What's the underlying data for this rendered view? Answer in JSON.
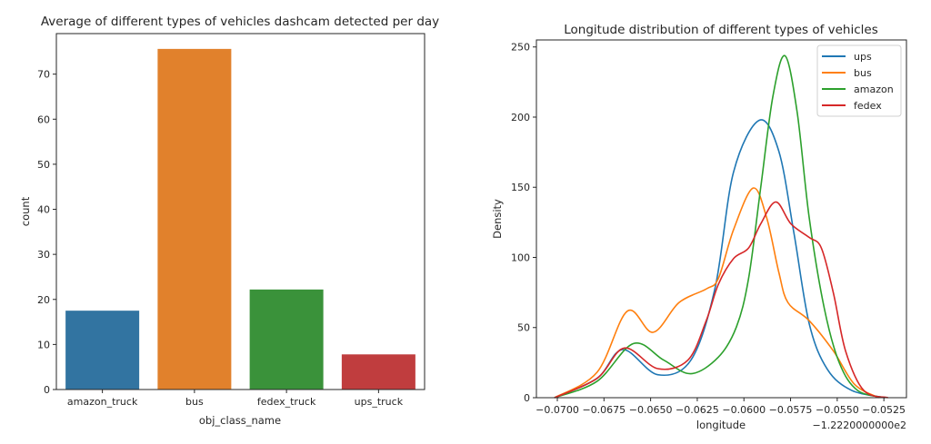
{
  "chart_data": [
    {
      "type": "bar",
      "title": "Average of different types of vehicles dashcam detected per day",
      "xlabel": "obj_class_name",
      "ylabel": "count",
      "categories": [
        "amazon_truck",
        "bus",
        "fedex_truck",
        "ups_truck"
      ],
      "values": [
        17.5,
        75.6,
        22.2,
        7.8
      ],
      "colors": [
        "#3274a1",
        "#e1812c",
        "#3a923a",
        "#c03d3e"
      ],
      "ylim": [
        0,
        79
      ],
      "yticks": [
        0,
        10,
        20,
        30,
        40,
        50,
        60,
        70
      ],
      "grid": false
    },
    {
      "type": "line",
      "title": "Longitude distribution of different types of vehicles",
      "xlabel": "longitude",
      "ylabel": "Density",
      "x_offset_label": "−1.2220000000e2",
      "xlim": [
        -0.07112,
        -0.05129
      ],
      "ylim": [
        0,
        255
      ],
      "xticks": [
        -0.07,
        -0.0675,
        -0.065,
        -0.0625,
        -0.06,
        -0.0575,
        -0.055,
        -0.0525
      ],
      "xtick_labels": [
        "−0.0700",
        "−0.0675",
        "−0.0650",
        "−0.0625",
        "−0.0600",
        "−0.0575",
        "−0.0550",
        "−0.0525"
      ],
      "yticks": [
        0,
        50,
        100,
        150,
        200,
        250
      ],
      "legend_position": "top-right",
      "grid": false,
      "series": [
        {
          "name": "ups",
          "color": "#1f77b4",
          "points": [
            [
              -0.07015,
              0
            ],
            [
              -0.06787,
              13.8
            ],
            [
              -0.06649,
              34.3
            ],
            [
              -0.06462,
              16.4
            ],
            [
              -0.06284,
              26.8
            ],
            [
              -0.06154,
              78.6
            ],
            [
              -0.06056,
              160.6
            ],
            [
              -0.05918,
              197.7
            ],
            [
              -0.05813,
              175.7
            ],
            [
              -0.05732,
              117.4
            ],
            [
              -0.0565,
              52.7
            ],
            [
              -0.05553,
              20.3
            ],
            [
              -0.05423,
              5.2
            ],
            [
              -0.05244,
              0
            ]
          ]
        },
        {
          "name": "bus",
          "color": "#ff7f0e",
          "points": [
            [
              -0.07015,
              0
            ],
            [
              -0.06787,
              18.1
            ],
            [
              -0.06625,
              61.7
            ],
            [
              -0.06487,
              46.6
            ],
            [
              -0.06348,
              67.8
            ],
            [
              -0.06202,
              77.5
            ],
            [
              -0.06137,
              85.0
            ],
            [
              -0.06056,
              119.6
            ],
            [
              -0.05951,
              149.4
            ],
            [
              -0.05878,
              128.2
            ],
            [
              -0.05813,
              89.4
            ],
            [
              -0.05764,
              67.8
            ],
            [
              -0.0565,
              54.9
            ],
            [
              -0.0552,
              33.2
            ],
            [
              -0.05407,
              9.5
            ],
            [
              -0.05277,
              0
            ]
          ]
        },
        {
          "name": "amazon",
          "color": "#2ca02c",
          "points": [
            [
              -0.07015,
              0
            ],
            [
              -0.06787,
              11.7
            ],
            [
              -0.06592,
              38.6
            ],
            [
              -0.0643,
              26.8
            ],
            [
              -0.06284,
              17.1
            ],
            [
              -0.06137,
              28.9
            ],
            [
              -0.0604,
              50.5
            ],
            [
              -0.05975,
              85.0
            ],
            [
              -0.0591,
              149.8
            ],
            [
              -0.05845,
              214.6
            ],
            [
              -0.0578,
              243.7
            ],
            [
              -0.05715,
              203.8
            ],
            [
              -0.0565,
              128.2
            ],
            [
              -0.05569,
              63.5
            ],
            [
              -0.05488,
              24.6
            ],
            [
              -0.05391,
              5.2
            ],
            [
              -0.05244,
              0
            ]
          ]
        },
        {
          "name": "fedex",
          "color": "#d62728",
          "points": [
            [
              -0.07015,
              0
            ],
            [
              -0.06787,
              13.8
            ],
            [
              -0.06641,
              35.4
            ],
            [
              -0.06462,
              20.7
            ],
            [
              -0.063,
              26.8
            ],
            [
              -0.06202,
              54.9
            ],
            [
              -0.06137,
              80.8
            ],
            [
              -0.06056,
              99.1
            ],
            [
              -0.05975,
              106.7
            ],
            [
              -0.0591,
              123.9
            ],
            [
              -0.05829,
              139.5
            ],
            [
              -0.05748,
              123.9
            ],
            [
              -0.0565,
              114.2
            ],
            [
              -0.05585,
              106.7
            ],
            [
              -0.0552,
              74.3
            ],
            [
              -0.05455,
              33.2
            ],
            [
              -0.05358,
              5.2
            ],
            [
              -0.05228,
              0
            ]
          ]
        }
      ]
    }
  ]
}
